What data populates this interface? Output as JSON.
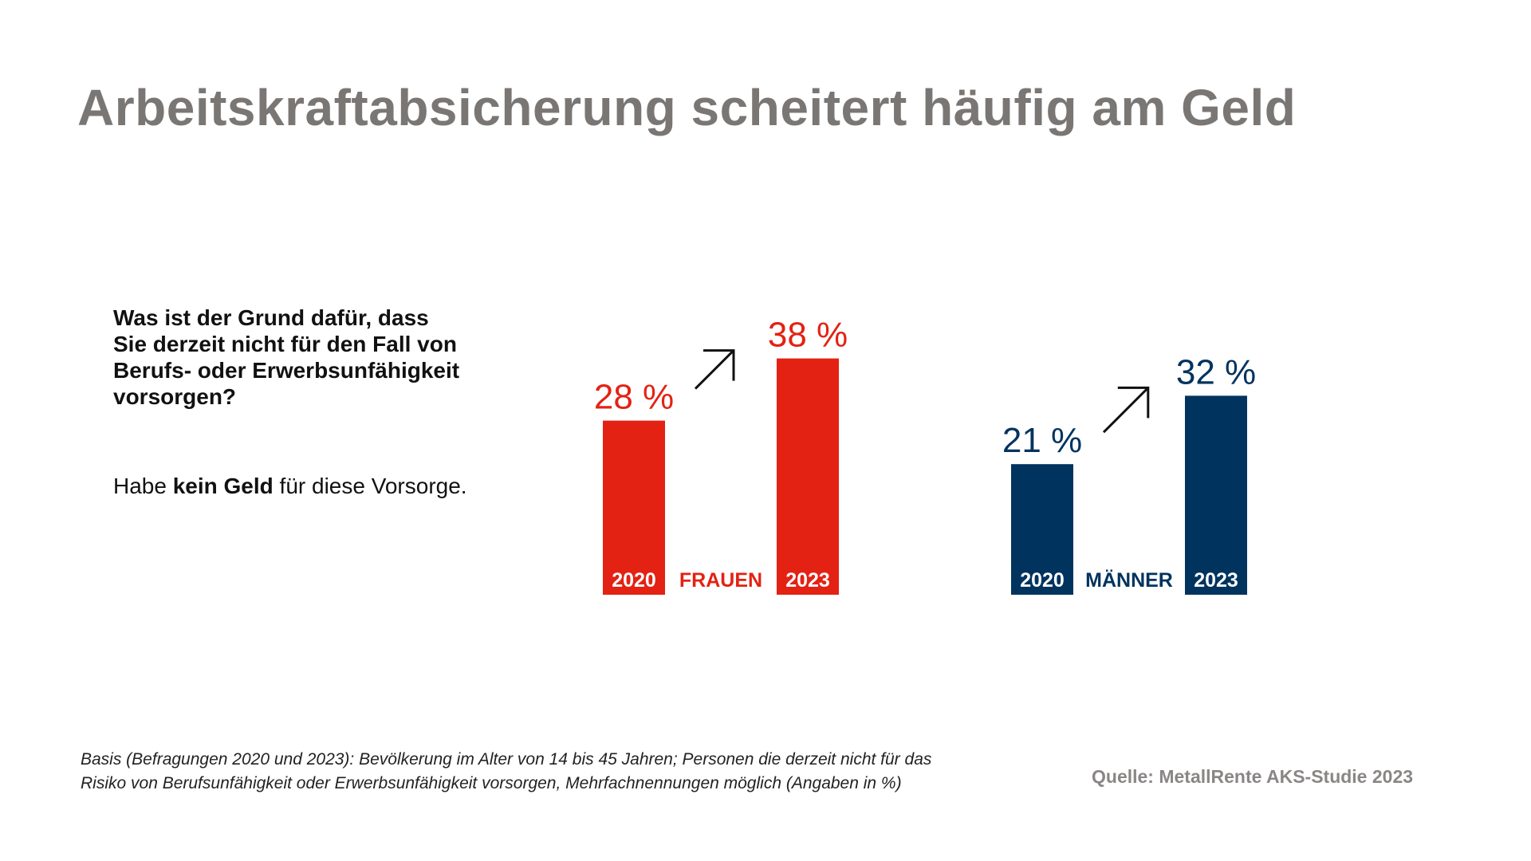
{
  "title": "Arbeitskraftabsicherung scheitert häufig am Geld",
  "question": {
    "lines": [
      "Was ist der Grund dafür, dass",
      "Sie derzeit nicht für den Fall von",
      "Berufs- oder Erwerbsunfähigkeit",
      "vorsorgen?"
    ]
  },
  "answer": {
    "prefix": "Habe ",
    "bold": "kein Geld",
    "suffix": " für diese Vorsorge."
  },
  "chart_data": {
    "type": "bar",
    "unit": "%",
    "ylim": [
      0,
      40
    ],
    "grid": false,
    "groups": [
      {
        "label": "FRAUEN",
        "color": "#e32213",
        "categories": [
          "2020",
          "2023"
        ],
        "values": [
          28,
          38
        ],
        "value_labels": [
          "28 %",
          "38 %"
        ],
        "trend_icon": "arrow-up-right-icon"
      },
      {
        "label": "MÄNNER",
        "color": "#00335e",
        "categories": [
          "2020",
          "2023"
        ],
        "values": [
          21,
          32
        ],
        "value_labels": [
          "21 %",
          "32 %"
        ],
        "trend_icon": "arrow-up-right-icon"
      }
    ]
  },
  "footnote": {
    "lines": [
      "Basis (Befragungen 2020 und 2023): Bevölkerung im Alter von 14 bis 45 Jahren; Personen die derzeit nicht für das",
      "Risiko von Berufsunfähigkeit oder Erwerbsunfähigkeit vorsorgen, Mehrfachnennungen möglich (Angaben in %)"
    ]
  },
  "source": "Quelle: MetallRente AKS-Studie 2023"
}
